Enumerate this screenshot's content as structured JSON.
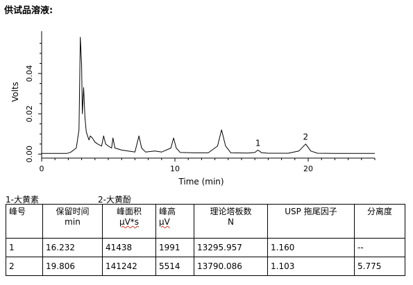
{
  "heading": "供试品溶液:",
  "chart_data": {
    "type": "line",
    "xlabel": "Time (min)",
    "ylabel": "Volts",
    "xlim": [
      0,
      25
    ],
    "ylim": [
      -0.002,
      0.061
    ],
    "x_ticks": [
      "0",
      "10",
      "20"
    ],
    "y_ticks": [
      "0.00",
      "0.02",
      "0.04"
    ],
    "grid": false,
    "series": [
      {
        "x": [
          0,
          1.9,
          2.2,
          2.6,
          2.8,
          2.9,
          3.0,
          3.05,
          3.15,
          3.25,
          3.35,
          3.45,
          3.55,
          3.65,
          3.8,
          4.0,
          4.2,
          4.5,
          4.65,
          4.8,
          5.0,
          5.25,
          5.35,
          5.5,
          6.0,
          7.0,
          7.3,
          7.5,
          7.8,
          8.5,
          9.0,
          9.7,
          9.9,
          10.1,
          10.4,
          11.5,
          12.5,
          13.2,
          13.5,
          13.8,
          14.2,
          15.5,
          16.0,
          16.23,
          16.5,
          17.0,
          18.5,
          19.3,
          19.81,
          20.2,
          20.7,
          22,
          25
        ],
        "y": [
          0.0003,
          0.0003,
          0.001,
          0.003,
          0.012,
          0.058,
          0.044,
          0.02,
          0.033,
          0.018,
          0.011,
          0.009,
          0.007,
          0.009,
          0.008,
          0.006,
          0.005,
          0.004,
          0.009,
          0.005,
          0.004,
          0.003,
          0.008,
          0.003,
          0.002,
          0.001,
          0.009,
          0.003,
          0.001,
          0.0015,
          0.001,
          0.003,
          0.008,
          0.003,
          0.0008,
          0.0006,
          0.0006,
          0.004,
          0.012,
          0.004,
          0.0006,
          0.0005,
          0.0008,
          0.002,
          0.0007,
          0.0004,
          0.0004,
          0.0015,
          0.005,
          0.0015,
          0.0004,
          0.0003,
          0.0003
        ]
      }
    ],
    "peak_labels": [
      {
        "label": "1",
        "x": 16.232,
        "y": 0.002
      },
      {
        "label": "2",
        "x": 19.806,
        "y": 0.005
      }
    ]
  },
  "legend": {
    "item1": "1-大黄素",
    "item2": "2-大黄酚"
  },
  "table": {
    "headers": [
      {
        "line1": "峰号",
        "line2": ""
      },
      {
        "line1": "保留时间",
        "line2": "min"
      },
      {
        "line1": "峰面积",
        "line2": "μV*s"
      },
      {
        "line1": "峰高",
        "line2": "μV"
      },
      {
        "line1": "理论塔板数",
        "line2": "N"
      },
      {
        "line1": "USP 拖尾因子",
        "line2": ""
      },
      {
        "line1": "分离度",
        "line2": ""
      }
    ],
    "rows": [
      [
        "1",
        "16.232",
        "41438",
        "1991",
        "13295.957",
        "1.160",
        "--"
      ],
      [
        "2",
        "19.806",
        "141242",
        "5514",
        "13790.086",
        "1.103",
        "5.775"
      ]
    ]
  }
}
